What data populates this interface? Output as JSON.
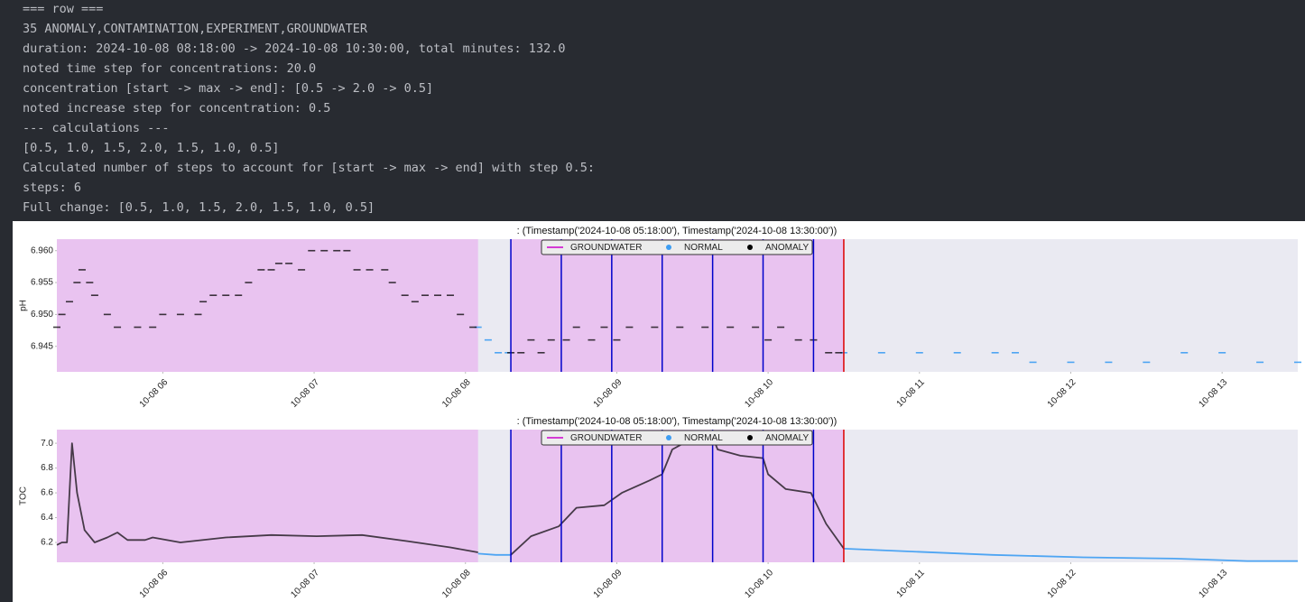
{
  "console": {
    "lines": [
      "=== row ===",
      "35 ANOMALY,CONTAMINATION,EXPERIMENT,GROUNDWATER",
      "duration: 2024-10-08 08:18:00 -> 2024-10-08 10:30:00, total minutes: 132.0",
      "noted time step for concentrations: 20.0",
      "concentration [start -> max -> end]: [0.5 -> 2.0 -> 0.5]",
      "noted increase step for concentration: 0.5",
      "--- calculations ---",
      "[0.5, 1.0, 1.5, 2.0, 1.5, 1.0, 0.5]",
      "Calculated number of steps to account for [start -> max -> end] with step 0.5:",
      "steps: 6",
      "Full change: [0.5, 1.0, 1.5, 2.0, 1.5, 1.0, 0.5]"
    ]
  },
  "chart_data": [
    {
      "type": "scatter",
      "title": ": (Timestamp('2024-10-08 05:18:00'), Timestamp('2024-10-08 13:30:00'))",
      "y_label": "pH",
      "xlim": [
        "2024-10-08T05:18",
        "2024-10-08T13:30"
      ],
      "xticks": [
        {
          "value": "2024-10-08T06:00",
          "label": "10-08 06"
        },
        {
          "value": "2024-10-08T07:00",
          "label": "10-08 07"
        },
        {
          "value": "2024-10-08T08:00",
          "label": "10-08 08"
        },
        {
          "value": "2024-10-08T09:00",
          "label": "10-08 09"
        },
        {
          "value": "2024-10-08T10:00",
          "label": "10-08 10"
        },
        {
          "value": "2024-10-08T11:00",
          "label": "10-08 11"
        },
        {
          "value": "2024-10-08T12:00",
          "label": "10-08 12"
        },
        {
          "value": "2024-10-08T13:00",
          "label": "10-08 13"
        }
      ],
      "ylim": [
        6.941,
        6.9618
      ],
      "yticks": [
        6.945,
        {
          "value": 6.95,
          "label": "6.950"
        },
        6.955,
        {
          "value": 6.96,
          "label": "6.960"
        }
      ],
      "groundwater": {
        "name": "GROUNDWATER",
        "color": "#cc00cc",
        "fill": "#e9c3f0",
        "spans": [
          [
            "2024-10-08T05:18",
            "2024-10-08T08:05"
          ],
          [
            "2024-10-08T08:18",
            "2024-10-08T10:30"
          ]
        ]
      },
      "step_lines": {
        "color": "#0000cc",
        "x": [
          "2024-10-08T08:18",
          "2024-10-08T08:38",
          "2024-10-08T08:58",
          "2024-10-08T09:18",
          "2024-10-08T09:38",
          "2024-10-08T09:58",
          "2024-10-08T10:18"
        ]
      },
      "end_line": {
        "color": "#dd0000",
        "x": "2024-10-08T10:30"
      },
      "series": [
        {
          "name": "NORMAL",
          "color": "#3d9df3",
          "x": [
            "2024-10-08T08:05",
            "2024-10-08T08:09",
            "2024-10-08T08:13",
            "2024-10-08T08:17",
            "2024-10-08T10:30",
            "2024-10-08T10:45",
            "2024-10-08T11:00",
            "2024-10-08T11:15",
            "2024-10-08T11:30",
            "2024-10-08T11:38",
            "2024-10-08T11:45",
            "2024-10-08T12:00",
            "2024-10-08T12:15",
            "2024-10-08T12:30",
            "2024-10-08T12:45",
            "2024-10-08T13:00",
            "2024-10-08T13:15",
            "2024-10-08T13:30"
          ],
          "values": [
            6.948,
            6.946,
            6.944,
            6.944,
            6.944,
            6.944,
            6.944,
            6.944,
            6.944,
            6.944,
            6.9425,
            6.9425,
            6.9425,
            6.9425,
            6.944,
            6.944,
            6.9425,
            6.9425
          ]
        },
        {
          "name": "ANOMALY",
          "color": "#000000",
          "x": [
            "2024-10-08T05:18",
            "2024-10-08T05:20",
            "2024-10-08T05:23",
            "2024-10-08T05:26",
            "2024-10-08T05:28",
            "2024-10-08T05:31",
            "2024-10-08T05:33",
            "2024-10-08T05:38",
            "2024-10-08T05:42",
            "2024-10-08T05:50",
            "2024-10-08T05:56",
            "2024-10-08T06:00",
            "2024-10-08T06:07",
            "2024-10-08T06:14",
            "2024-10-08T06:16",
            "2024-10-08T06:20",
            "2024-10-08T06:25",
            "2024-10-08T06:30",
            "2024-10-08T06:34",
            "2024-10-08T06:39",
            "2024-10-08T06:43",
            "2024-10-08T06:46",
            "2024-10-08T06:50",
            "2024-10-08T06:55",
            "2024-10-08T06:59",
            "2024-10-08T07:04",
            "2024-10-08T07:09",
            "2024-10-08T07:13",
            "2024-10-08T07:17",
            "2024-10-08T07:22",
            "2024-10-08T07:28",
            "2024-10-08T07:31",
            "2024-10-08T07:36",
            "2024-10-08T07:40",
            "2024-10-08T07:44",
            "2024-10-08T07:49",
            "2024-10-08T07:54",
            "2024-10-08T07:58",
            "2024-10-08T08:03",
            "2024-10-08T08:18",
            "2024-10-08T08:22",
            "2024-10-08T08:26",
            "2024-10-08T08:30",
            "2024-10-08T08:34",
            "2024-10-08T08:40",
            "2024-10-08T08:44",
            "2024-10-08T08:50",
            "2024-10-08T08:55",
            "2024-10-08T09:00",
            "2024-10-08T09:05",
            "2024-10-08T09:15",
            "2024-10-08T09:25",
            "2024-10-08T09:35",
            "2024-10-08T09:45",
            "2024-10-08T09:55",
            "2024-10-08T10:00",
            "2024-10-08T10:05",
            "2024-10-08T10:12",
            "2024-10-08T10:18",
            "2024-10-08T10:24",
            "2024-10-08T10:28"
          ],
          "values": [
            6.948,
            6.95,
            6.952,
            6.955,
            6.957,
            6.955,
            6.953,
            6.95,
            6.948,
            6.948,
            6.948,
            6.95,
            6.95,
            6.95,
            6.952,
            6.953,
            6.953,
            6.953,
            6.955,
            6.957,
            6.957,
            6.958,
            6.958,
            6.957,
            6.96,
            6.96,
            6.96,
            6.96,
            6.957,
            6.957,
            6.957,
            6.955,
            6.953,
            6.952,
            6.953,
            6.953,
            6.953,
            6.95,
            6.948,
            6.944,
            6.944,
            6.946,
            6.944,
            6.946,
            6.946,
            6.948,
            6.946,
            6.948,
            6.946,
            6.948,
            6.948,
            6.948,
            6.948,
            6.948,
            6.948,
            6.946,
            6.948,
            6.946,
            6.946,
            6.944,
            6.944
          ]
        }
      ]
    },
    {
      "type": "line",
      "title": ": (Timestamp('2024-10-08 05:18:00'), Timestamp('2024-10-08 13:30:00'))",
      "y_label": "TOC",
      "xlim": [
        "2024-10-08T05:18",
        "2024-10-08T13:30"
      ],
      "xticks": [
        {
          "value": "2024-10-08T06:00",
          "label": "10-08 06"
        },
        {
          "value": "2024-10-08T07:00",
          "label": "10-08 07"
        },
        {
          "value": "2024-10-08T08:00",
          "label": "10-08 08"
        },
        {
          "value": "2024-10-08T09:00",
          "label": "10-08 09"
        },
        {
          "value": "2024-10-08T10:00",
          "label": "10-08 10"
        },
        {
          "value": "2024-10-08T11:00",
          "label": "10-08 11"
        },
        {
          "value": "2024-10-08T12:00",
          "label": "10-08 12"
        },
        {
          "value": "2024-10-08T13:00",
          "label": "10-08 13"
        }
      ],
      "ylim": [
        6.04,
        7.11
      ],
      "yticks": [
        6.2,
        6.4,
        6.6,
        6.8,
        {
          "value": 7.0,
          "label": "7.0"
        }
      ],
      "groundwater": {
        "name": "GROUNDWATER",
        "color": "#cc00cc",
        "fill": "#e9c3f0",
        "spans": [
          [
            "2024-10-08T05:18",
            "2024-10-08T08:05"
          ],
          [
            "2024-10-08T08:18",
            "2024-10-08T10:30"
          ]
        ]
      },
      "step_lines": {
        "color": "#0000cc",
        "x": [
          "2024-10-08T08:18",
          "2024-10-08T08:38",
          "2024-10-08T08:58",
          "2024-10-08T09:18",
          "2024-10-08T09:38",
          "2024-10-08T09:58",
          "2024-10-08T10:18"
        ]
      },
      "end_line": {
        "color": "#dd0000",
        "x": "2024-10-08T10:30"
      },
      "series": [
        {
          "name": "NORMAL",
          "color": "#3d9df3",
          "x": [
            "2024-10-08T08:05",
            "2024-10-08T08:12",
            "2024-10-08T08:18",
            "2024-10-08T09:00",
            "2024-10-08T10:30",
            "2024-10-08T10:53",
            "2024-10-08T11:29",
            "2024-10-08T12:05",
            "2024-10-08T12:41",
            "2024-10-08T13:10",
            "2024-10-08T13:30"
          ],
          "values": [
            6.11,
            6.1,
            6.1,
            null,
            6.15,
            6.13,
            6.1,
            6.08,
            6.07,
            6.05,
            6.05
          ]
        },
        {
          "name": "ANOMALY",
          "color": "#000000",
          "x": [
            "2024-10-08T05:18",
            "2024-10-08T05:20",
            "2024-10-08T05:22",
            "2024-10-08T05:24",
            "2024-10-08T05:26",
            "2024-10-08T05:29",
            "2024-10-08T05:33",
            "2024-10-08T05:38",
            "2024-10-08T05:42",
            "2024-10-08T05:46",
            "2024-10-08T05:53",
            "2024-10-08T05:56",
            "2024-10-08T06:07",
            "2024-10-08T06:25",
            "2024-10-08T06:43",
            "2024-10-08T07:01",
            "2024-10-08T07:19",
            "2024-10-08T07:37",
            "2024-10-08T07:54",
            "2024-10-08T08:05",
            "2024-10-08T08:12",
            "2024-10-08T08:18",
            "2024-10-08T08:26",
            "2024-10-08T08:37",
            "2024-10-08T08:44",
            "2024-10-08T08:55",
            "2024-10-08T09:02",
            "2024-10-08T09:13",
            "2024-10-08T09:18",
            "2024-10-08T09:22",
            "2024-10-08T09:31",
            "2024-10-08T09:38",
            "2024-10-08T09:40",
            "2024-10-08T09:49",
            "2024-10-08T09:58",
            "2024-10-08T10:00",
            "2024-10-08T10:07",
            "2024-10-08T10:17",
            "2024-10-08T10:23",
            "2024-10-08T10:30"
          ],
          "values": [
            6.18,
            6.2,
            6.2,
            7.0,
            6.6,
            6.3,
            6.2,
            6.24,
            6.28,
            6.22,
            6.22,
            6.24,
            6.2,
            6.24,
            6.26,
            6.25,
            6.26,
            6.21,
            6.16,
            6.12,
            null,
            6.1,
            6.25,
            6.33,
            6.48,
            6.5,
            6.6,
            6.7,
            6.75,
            6.95,
            7.05,
            7.05,
            6.95,
            6.9,
            6.88,
            6.75,
            6.63,
            6.6,
            6.35,
            6.15
          ]
        }
      ]
    }
  ]
}
